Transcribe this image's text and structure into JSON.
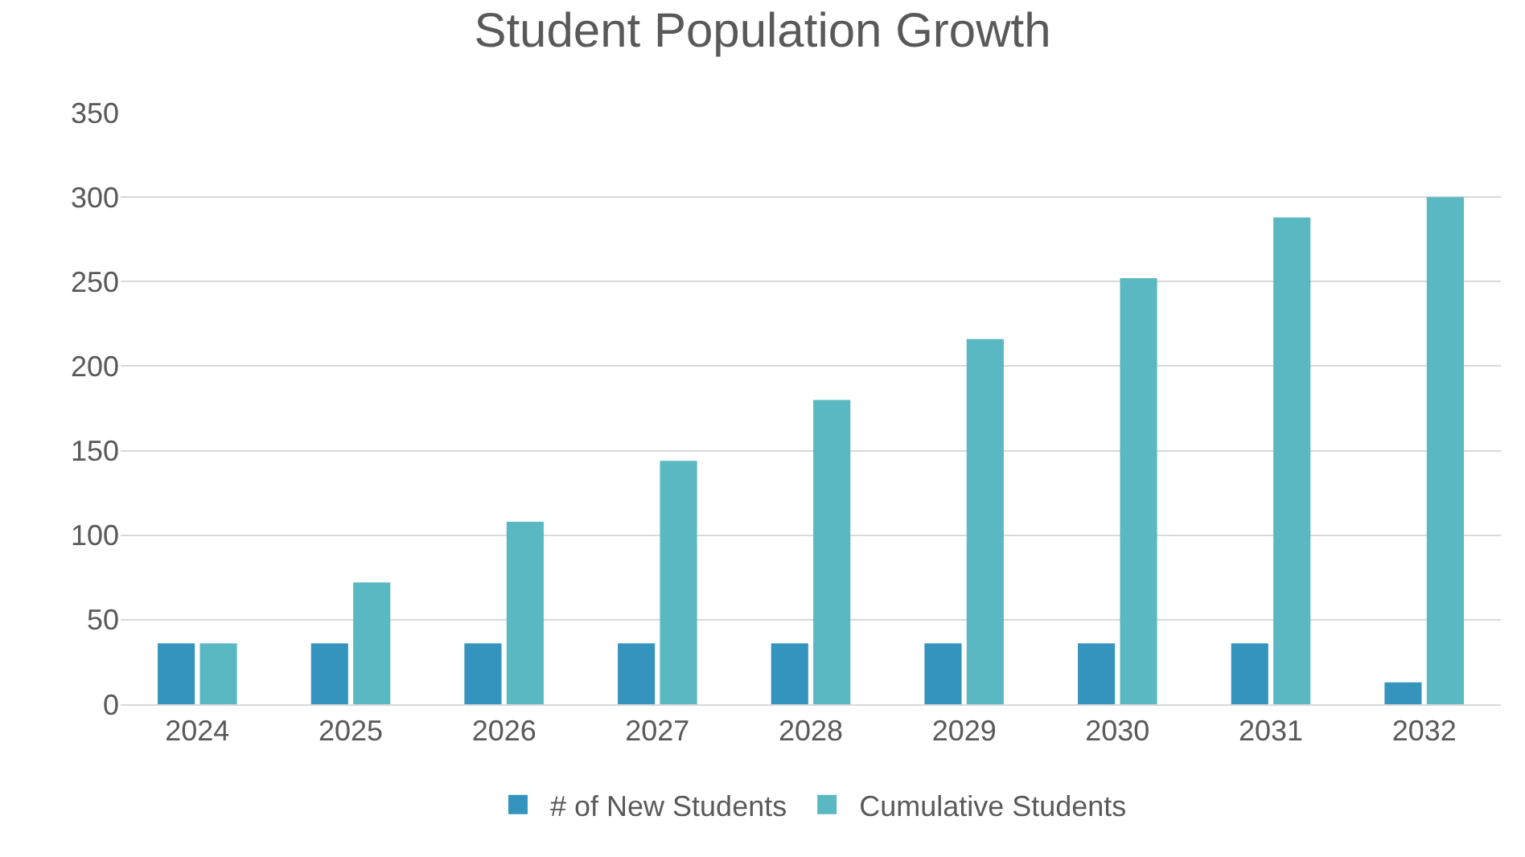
{
  "chart_data": {
    "type": "bar",
    "title": "Student Population Growth",
    "categories": [
      "2024",
      "2025",
      "2026",
      "2027",
      "2028",
      "2029",
      "2030",
      "2031",
      "2032"
    ],
    "series": [
      {
        "name": "# of New Students",
        "color": "#3594be",
        "values": [
          36,
          36,
          36,
          36,
          36,
          36,
          36,
          36,
          13
        ]
      },
      {
        "name": "Cumulative Students",
        "color": "#5ab8c2",
        "values": [
          36,
          72,
          108,
          144,
          180,
          216,
          252,
          288,
          300
        ]
      }
    ],
    "ylim": [
      0,
      350
    ],
    "yticks": [
      0,
      50,
      100,
      150,
      200,
      250,
      300,
      350
    ],
    "grid": "y",
    "legend": "bottom"
  }
}
